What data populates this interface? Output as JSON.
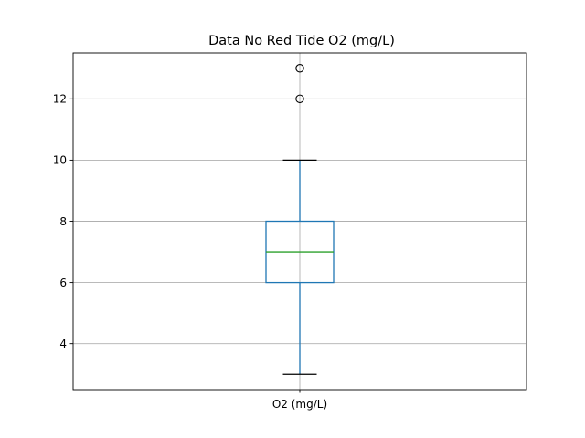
{
  "chart_data": {
    "type": "box",
    "title": "Data No Red Tide O2 (mg/L)",
    "categories": [
      "O2 (mg/L)"
    ],
    "boxes": [
      {
        "label": "O2 (mg/L)",
        "whisker_low": 3,
        "q1": 6,
        "median": 7,
        "q3": 8,
        "whisker_high": 10,
        "outliers": [
          12,
          13
        ]
      }
    ],
    "ylim": [
      2.5,
      13.5
    ],
    "yticks": [
      4,
      6,
      8,
      10,
      12
    ],
    "grid": true,
    "colors": {
      "box": "#1f77b4",
      "median": "#2ca02c",
      "whisker_cap": "#000000",
      "outlier": "#000000",
      "grid": "#b0b0b0"
    }
  }
}
